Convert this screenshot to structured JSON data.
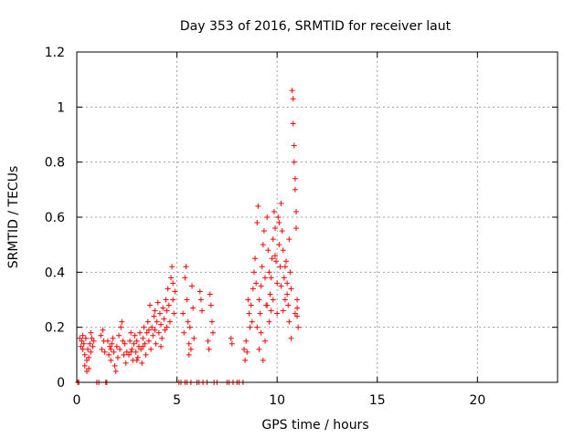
{
  "chart_data": {
    "type": "scatter",
    "title": "Day 353 of 2016, SRMTID for receiver laut",
    "xlabel": "GPS time / hours",
    "ylabel": "SRMTID / TECUs",
    "xlim": [
      0,
      24
    ],
    "ylim": [
      0,
      1.2
    ],
    "xticks": [
      0,
      5,
      10,
      15,
      20
    ],
    "xtick_labels": [
      "0",
      "5",
      "10",
      "15",
      "20"
    ],
    "yticks": [
      0,
      0.2,
      0.4,
      0.6,
      0.8,
      1,
      1.2
    ],
    "ytick_labels": [
      "0",
      "0.2",
      "0.4",
      "0.6",
      "0.8",
      "1",
      "1.2"
    ],
    "grid": true,
    "marker": "plus",
    "color": "#ff0000",
    "series": [
      {
        "name": "SRMTID",
        "points": [
          [
            0.05,
            0.0
          ],
          [
            0.1,
            0.0
          ],
          [
            0.15,
            0.16
          ],
          [
            0.2,
            0.13
          ],
          [
            0.25,
            0.15
          ],
          [
            0.3,
            0.12
          ],
          [
            0.35,
            0.14
          ],
          [
            0.4,
            0.1
          ],
          [
            0.45,
            0.16
          ],
          [
            0.5,
            0.08
          ],
          [
            0.55,
            0.12
          ],
          [
            0.6,
            0.05
          ],
          [
            0.65,
            0.14
          ],
          [
            0.7,
            0.11
          ],
          [
            0.75,
            0.16
          ],
          [
            0.8,
            0.13
          ],
          [
            0.85,
            0.15
          ],
          [
            0.3,
            0.17
          ],
          [
            0.4,
            0.06
          ],
          [
            0.5,
            0.04
          ],
          [
            0.6,
            0.09
          ],
          [
            0.7,
            0.18
          ],
          [
            1.0,
            0.0
          ],
          [
            1.1,
            0.0
          ],
          [
            1.2,
            0.17
          ],
          [
            1.25,
            0.12
          ],
          [
            1.3,
            0.19
          ],
          [
            1.35,
            0.15
          ],
          [
            1.4,
            0.11
          ],
          [
            1.45,
            0.0
          ],
          [
            1.5,
            0.0
          ],
          [
            1.6,
            0.1
          ],
          [
            1.65,
            0.13
          ],
          [
            1.7,
            0.08
          ],
          [
            1.75,
            0.14
          ],
          [
            1.8,
            0.16
          ],
          [
            1.85,
            0.11
          ],
          [
            1.9,
            0.06
          ],
          [
            1.95,
            0.04
          ],
          [
            2.0,
            0.13
          ],
          [
            2.05,
            0.09
          ],
          [
            2.1,
            0.17
          ],
          [
            2.15,
            0.12
          ],
          [
            2.2,
            0.2
          ],
          [
            2.25,
            0.22
          ],
          [
            2.3,
            0.15
          ],
          [
            2.35,
            0.1
          ],
          [
            2.4,
            0.14
          ],
          [
            2.45,
            0.07
          ],
          [
            2.5,
            0.11
          ],
          [
            1.55,
            0.15
          ],
          [
            1.7,
            0.12
          ],
          [
            2.6,
            0.1
          ],
          [
            2.65,
            0.15
          ],
          [
            2.7,
            0.18
          ],
          [
            2.75,
            0.12
          ],
          [
            2.8,
            0.08
          ],
          [
            2.85,
            0.14
          ],
          [
            2.9,
            0.17
          ],
          [
            2.95,
            0.11
          ],
          [
            3.0,
            0.15
          ],
          [
            3.05,
            0.09
          ],
          [
            3.1,
            0.13
          ],
          [
            3.15,
            0.18
          ],
          [
            3.2,
            0.12
          ],
          [
            3.25,
            0.07
          ],
          [
            3.3,
            0.16
          ],
          [
            3.35,
            0.2
          ],
          [
            3.4,
            0.14
          ],
          [
            3.45,
            0.1
          ],
          [
            3.5,
            0.18
          ],
          [
            3.55,
            0.22
          ],
          [
            3.6,
            0.15
          ],
          [
            3.65,
            0.28
          ],
          [
            3.7,
            0.12
          ],
          [
            3.75,
            0.2
          ],
          [
            3.8,
            0.17
          ],
          [
            3.85,
            0.24
          ],
          [
            3.9,
            0.19
          ],
          [
            3.95,
            0.14
          ],
          [
            4.0,
            0.22
          ],
          [
            4.05,
            0.29
          ],
          [
            4.1,
            0.18
          ],
          [
            4.15,
            0.25
          ],
          [
            4.2,
            0.21
          ],
          [
            4.25,
            0.16
          ],
          [
            4.3,
            0.27
          ],
          [
            4.35,
            0.23
          ],
          [
            4.4,
            0.19
          ],
          [
            4.45,
            0.3
          ],
          [
            4.5,
            0.26
          ],
          [
            4.55,
            0.34
          ],
          [
            4.6,
            0.28
          ],
          [
            4.65,
            0.22
          ],
          [
            4.7,
            0.38
          ],
          [
            4.75,
            0.42
          ],
          [
            4.8,
            0.3
          ],
          [
            4.85,
            0.25
          ],
          [
            4.9,
            0.33
          ],
          [
            2.7,
            0.11
          ],
          [
            3.0,
            0.08
          ],
          [
            3.3,
            0.13
          ],
          [
            3.6,
            0.19
          ],
          [
            3.9,
            0.26
          ],
          [
            4.2,
            0.13
          ],
          [
            4.5,
            0.2
          ],
          [
            4.8,
            0.36
          ],
          [
            5.1,
            0.0
          ],
          [
            5.2,
            0.0
          ],
          [
            5.3,
            0.25
          ],
          [
            5.35,
            0.18
          ],
          [
            5.4,
            0.38
          ],
          [
            5.45,
            0.42
          ],
          [
            5.5,
            0.3
          ],
          [
            5.55,
            0.22
          ],
          [
            5.6,
            0.14
          ],
          [
            5.65,
            0.2
          ],
          [
            5.7,
            0.12
          ],
          [
            5.75,
            0.35
          ],
          [
            5.8,
            0.27
          ],
          [
            5.85,
            0.16
          ],
          [
            5.4,
            0.0
          ],
          [
            5.5,
            0.0
          ],
          [
            5.6,
            0.1
          ],
          [
            5.7,
            0.0
          ],
          [
            6.0,
            0.0
          ],
          [
            6.1,
            0.0
          ],
          [
            6.15,
            0.33
          ],
          [
            6.2,
            0.3
          ],
          [
            6.25,
            0.26
          ],
          [
            6.3,
            0.0
          ],
          [
            6.5,
            0.0
          ],
          [
            6.55,
            0.15
          ],
          [
            6.6,
            0.12
          ],
          [
            6.65,
            0.32
          ],
          [
            6.7,
            0.28
          ],
          [
            6.75,
            0.22
          ],
          [
            6.8,
            0.18
          ],
          [
            6.85,
            0.0
          ],
          [
            7.0,
            0.0
          ],
          [
            7.5,
            0.0
          ],
          [
            7.6,
            0.0
          ],
          [
            7.7,
            0.16
          ],
          [
            7.75,
            0.14
          ],
          [
            7.8,
            0.0
          ],
          [
            8.0,
            0.0
          ],
          [
            8.1,
            0.0
          ],
          [
            8.3,
            0.0
          ],
          [
            8.35,
            0.12
          ],
          [
            8.4,
            0.08
          ],
          [
            8.45,
            0.15
          ],
          [
            8.5,
            0.11
          ],
          [
            8.55,
            0.3
          ],
          [
            8.6,
            0.25
          ],
          [
            8.65,
            0.2
          ],
          [
            8.7,
            0.28
          ],
          [
            8.75,
            0.22
          ],
          [
            8.8,
            0.34
          ],
          [
            8.85,
            0.4
          ],
          [
            8.9,
            0.45
          ],
          [
            8.95,
            0.36
          ],
          [
            9.0,
            0.58
          ],
          [
            9.05,
            0.64
          ],
          [
            9.1,
            0.3
          ],
          [
            9.15,
            0.25
          ],
          [
            9.2,
            0.35
          ],
          [
            9.25,
            0.42
          ],
          [
            9.3,
            0.5
          ],
          [
            9.35,
            0.55
          ],
          [
            9.4,
            0.38
          ],
          [
            9.45,
            0.28
          ],
          [
            9.5,
            0.6
          ],
          [
            9.55,
            0.48
          ],
          [
            9.6,
            0.4
          ],
          [
            9.65,
            0.32
          ],
          [
            9.7,
            0.26
          ],
          [
            9.75,
            0.45
          ],
          [
            9.8,
            0.52
          ],
          [
            9.85,
            0.62
          ],
          [
            9.9,
            0.56
          ],
          [
            9.95,
            0.44
          ],
          [
            10.0,
            0.36
          ],
          [
            10.05,
            0.6
          ],
          [
            10.1,
            0.5
          ],
          [
            10.15,
            0.42
          ],
          [
            10.2,
            0.65
          ],
          [
            10.25,
            0.55
          ],
          [
            10.3,
            0.48
          ],
          [
            10.35,
            0.38
          ],
          [
            10.4,
            0.3
          ],
          [
            10.45,
            0.44
          ],
          [
            10.5,
            0.36
          ],
          [
            10.55,
            0.28
          ],
          [
            10.6,
            0.52
          ],
          [
            10.65,
            0.4
          ],
          [
            10.7,
            0.34
          ],
          [
            10.75,
            1.06
          ],
          [
            10.8,
            1.03
          ],
          [
            10.8,
            0.94
          ],
          [
            10.85,
            0.86
          ],
          [
            10.85,
            0.8
          ],
          [
            10.9,
            0.74
          ],
          [
            10.9,
            0.7
          ],
          [
            10.95,
            0.62
          ],
          [
            10.95,
            0.56
          ],
          [
            11.0,
            0.3
          ],
          [
            11.0,
            0.24
          ],
          [
            11.05,
            0.2
          ],
          [
            9.1,
            0.12
          ],
          [
            9.2,
            0.18
          ],
          [
            9.4,
            0.15
          ],
          [
            9.6,
            0.22
          ],
          [
            9.8,
            0.3
          ],
          [
            10.0,
            0.25
          ],
          [
            10.2,
            0.35
          ],
          [
            10.4,
            0.42
          ],
          [
            10.6,
            0.22
          ],
          [
            10.7,
            0.16
          ],
          [
            9.0,
            0.2
          ],
          [
            9.3,
            0.08
          ],
          [
            9.5,
            0.28
          ],
          [
            9.7,
            0.38
          ],
          [
            9.9,
            0.46
          ],
          [
            10.1,
            0.58
          ],
          [
            10.3,
            0.26
          ],
          [
            10.5,
            0.32
          ],
          [
            10.9,
            0.25
          ],
          [
            11.0,
            0.27
          ]
        ]
      }
    ]
  }
}
